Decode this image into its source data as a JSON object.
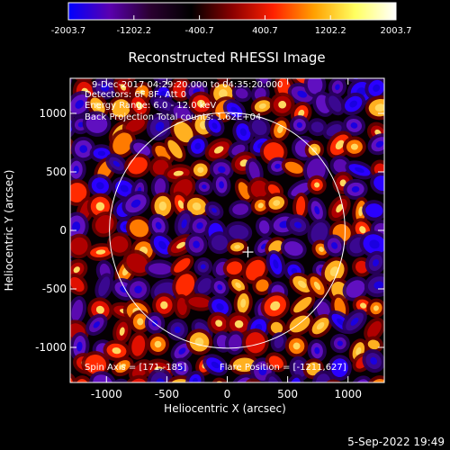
{
  "chart_data": {
    "type": "heatmap",
    "title": "Reconstructed RHESSI Image",
    "xlabel": "Heliocentric X (arcsec)",
    "ylabel": "Heliocentric Y (arcsec)",
    "xlim": [
      -1300,
      1300
    ],
    "ylim": [
      -1300,
      1300
    ],
    "x_ticks": [
      -1000,
      -500,
      0,
      500,
      1000
    ],
    "y_ticks": [
      -1000,
      -500,
      0,
      500,
      1000
    ],
    "x_tick_labels": [
      "-1000",
      "-500",
      "0",
      "500",
      "1000"
    ],
    "y_tick_labels": [
      "-1000",
      "-500",
      "0",
      "500",
      "1000"
    ],
    "colorbar": {
      "range": [
        -2003.7,
        2003.7
      ],
      "tick_values": [
        -2003.7,
        -1202.2,
        -400.7,
        400.7,
        1202.2,
        2003.7
      ],
      "tick_labels": [
        "-2003.7",
        "-1202.2",
        "-400.7",
        "400.7",
        "1202.2",
        "2003.7"
      ],
      "colors": [
        "#0000ff",
        "#5a00b0",
        "#2a0030",
        "#000000",
        "#8a0000",
        "#ff2000",
        "#ffa000",
        "#ffff60",
        "#ffffff"
      ]
    },
    "annotations": {
      "time": "9-Dec-2017 04:29:20.000 to 04:35:20.000",
      "detectors": "Detectors: 6F 8F, Att 0",
      "energy": "Energy Range: 6.0 - 12.0 keV",
      "method": "Back Projection   Total counts: 1.62E+04",
      "spin_axis": "Spin Axis = [171,-185]",
      "flare_position": "Flare Position = [-1211,627]"
    },
    "solar_limb_radius": 975,
    "marker_position": [
      171,
      -185
    ],
    "grid": false
  },
  "footer": {
    "timestamp": "5-Sep-2022 19:49"
  }
}
